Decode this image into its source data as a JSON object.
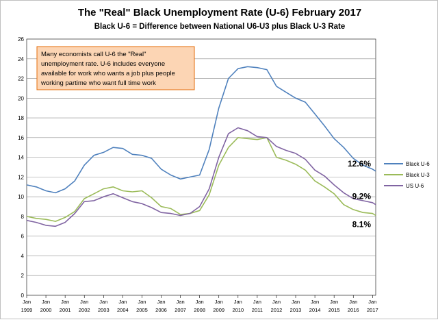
{
  "chart_data": {
    "type": "line",
    "title": "The \"Real\" Black Unemployment Rate (U-6) February 2017",
    "subtitle": "Black U-6  = Difference between National U6-U3 plus Black U-3 Rate",
    "xlabel": "",
    "ylabel": "",
    "ylim": [
      0,
      26
    ],
    "yticks": [
      "0",
      "2",
      "4",
      "6",
      "8",
      "10",
      "12",
      "14",
      "16",
      "18",
      "20",
      "22",
      "24",
      "26"
    ],
    "x_ticks": [
      {
        "top": "Jan",
        "bottom": "1999"
      },
      {
        "top": "Jan",
        "bottom": "2000"
      },
      {
        "top": "Jan",
        "bottom": "2001"
      },
      {
        "top": "Jan",
        "bottom": "2002"
      },
      {
        "top": "Jan",
        "bottom": "2003"
      },
      {
        "top": "Jan",
        "bottom": "2004"
      },
      {
        "top": "Jan",
        "bottom": "2005"
      },
      {
        "top": "Jan",
        "bottom": "2006"
      },
      {
        "top": "Jan",
        "bottom": "2007"
      },
      {
        "top": "Jan",
        "bottom": "2008"
      },
      {
        "top": "Jan",
        "bottom": "2009"
      },
      {
        "top": "Jan",
        "bottom": "2010"
      },
      {
        "top": "Jan",
        "bottom": "2011"
      },
      {
        "top": "Jan",
        "bottom": "2012"
      },
      {
        "top": "Jan",
        "bottom": "2013"
      },
      {
        "top": "Jan",
        "bottom": "2014"
      },
      {
        "top": "Jan",
        "bottom": "2015"
      },
      {
        "top": "Jan",
        "bottom": "2016"
      },
      {
        "top": "Jan",
        "bottom": "2017"
      }
    ],
    "x_start": 1999.0,
    "x_end": 2017.1667,
    "grid": true,
    "legend_position": "right",
    "annotation_box": {
      "text_lines": [
        "Many economists call U-6 the \"Real\"",
        "unemployment rate.  U-6  includes everyone",
        "available for work who wants a job plus people",
        "working partime who want full time work"
      ],
      "fill": "#fcd5b4",
      "border": "#e46c0a"
    },
    "end_labels": [
      {
        "series": "Black U-6",
        "text": "12.6%"
      },
      {
        "series": "US U-6",
        "text": "9.2%"
      },
      {
        "series": "Black U-3",
        "text": "8.1%"
      }
    ],
    "series": [
      {
        "name": "Black U-6",
        "color": "#4f81bd",
        "points": [
          [
            1999.0,
            11.2
          ],
          [
            1999.5,
            11.0
          ],
          [
            2000.0,
            10.6
          ],
          [
            2000.5,
            10.4
          ],
          [
            2001.0,
            10.8
          ],
          [
            2001.5,
            11.6
          ],
          [
            2002.0,
            13.2
          ],
          [
            2002.5,
            14.2
          ],
          [
            2003.0,
            14.5
          ],
          [
            2003.5,
            15.0
          ],
          [
            2004.0,
            14.9
          ],
          [
            2004.5,
            14.3
          ],
          [
            2005.0,
            14.2
          ],
          [
            2005.5,
            13.9
          ],
          [
            2006.0,
            12.8
          ],
          [
            2006.5,
            12.2
          ],
          [
            2007.0,
            11.8
          ],
          [
            2007.5,
            12.0
          ],
          [
            2008.0,
            12.2
          ],
          [
            2008.5,
            14.8
          ],
          [
            2009.0,
            19.0
          ],
          [
            2009.5,
            22.0
          ],
          [
            2010.0,
            23.0
          ],
          [
            2010.5,
            23.2
          ],
          [
            2011.0,
            23.1
          ],
          [
            2011.5,
            22.9
          ],
          [
            2012.0,
            21.2
          ],
          [
            2012.5,
            20.6
          ],
          [
            2013.0,
            20.0
          ],
          [
            2013.5,
            19.6
          ],
          [
            2014.0,
            18.4
          ],
          [
            2014.5,
            17.2
          ],
          [
            2015.0,
            15.9
          ],
          [
            2015.5,
            15.0
          ],
          [
            2016.0,
            13.9
          ],
          [
            2016.5,
            13.2
          ],
          [
            2017.0,
            12.8
          ],
          [
            2017.1667,
            12.6
          ]
        ]
      },
      {
        "name": "Black U-3",
        "color": "#9bbb59",
        "points": [
          [
            1999.0,
            8.0
          ],
          [
            1999.5,
            7.8
          ],
          [
            2000.0,
            7.7
          ],
          [
            2000.5,
            7.5
          ],
          [
            2001.0,
            7.9
          ],
          [
            2001.5,
            8.5
          ],
          [
            2002.0,
            9.8
          ],
          [
            2002.5,
            10.3
          ],
          [
            2003.0,
            10.8
          ],
          [
            2003.5,
            11.0
          ],
          [
            2004.0,
            10.6
          ],
          [
            2004.5,
            10.5
          ],
          [
            2005.0,
            10.6
          ],
          [
            2005.5,
            9.9
          ],
          [
            2006.0,
            9.0
          ],
          [
            2006.5,
            8.8
          ],
          [
            2007.0,
            8.2
          ],
          [
            2007.5,
            8.3
          ],
          [
            2008.0,
            8.6
          ],
          [
            2008.5,
            10.2
          ],
          [
            2009.0,
            13.2
          ],
          [
            2009.5,
            15.0
          ],
          [
            2010.0,
            16.0
          ],
          [
            2010.5,
            15.9
          ],
          [
            2011.0,
            15.8
          ],
          [
            2011.5,
            16.0
          ],
          [
            2012.0,
            14.0
          ],
          [
            2012.5,
            13.7
          ],
          [
            2013.0,
            13.3
          ],
          [
            2013.5,
            12.7
          ],
          [
            2014.0,
            11.6
          ],
          [
            2014.5,
            11.0
          ],
          [
            2015.0,
            10.3
          ],
          [
            2015.5,
            9.2
          ],
          [
            2016.0,
            8.7
          ],
          [
            2016.5,
            8.4
          ],
          [
            2017.0,
            8.3
          ],
          [
            2017.1667,
            8.1
          ]
        ]
      },
      {
        "name": "US U-6",
        "color": "#8064a2",
        "points": [
          [
            1999.0,
            7.6
          ],
          [
            1999.5,
            7.4
          ],
          [
            2000.0,
            7.1
          ],
          [
            2000.5,
            7.0
          ],
          [
            2001.0,
            7.4
          ],
          [
            2001.5,
            8.3
          ],
          [
            2002.0,
            9.5
          ],
          [
            2002.5,
            9.6
          ],
          [
            2003.0,
            10.0
          ],
          [
            2003.5,
            10.3
          ],
          [
            2004.0,
            9.9
          ],
          [
            2004.5,
            9.5
          ],
          [
            2005.0,
            9.3
          ],
          [
            2005.5,
            8.9
          ],
          [
            2006.0,
            8.4
          ],
          [
            2006.5,
            8.3
          ],
          [
            2007.0,
            8.1
          ],
          [
            2007.5,
            8.3
          ],
          [
            2008.0,
            9.0
          ],
          [
            2008.5,
            10.8
          ],
          [
            2009.0,
            14.0
          ],
          [
            2009.5,
            16.4
          ],
          [
            2010.0,
            17.0
          ],
          [
            2010.5,
            16.7
          ],
          [
            2011.0,
            16.1
          ],
          [
            2011.5,
            16.0
          ],
          [
            2012.0,
            15.1
          ],
          [
            2012.5,
            14.7
          ],
          [
            2013.0,
            14.4
          ],
          [
            2013.5,
            13.8
          ],
          [
            2014.0,
            12.7
          ],
          [
            2014.5,
            12.1
          ],
          [
            2015.0,
            11.2
          ],
          [
            2015.5,
            10.4
          ],
          [
            2016.0,
            9.8
          ],
          [
            2016.5,
            9.6
          ],
          [
            2017.0,
            9.4
          ],
          [
            2017.1667,
            9.2
          ]
        ]
      }
    ]
  }
}
